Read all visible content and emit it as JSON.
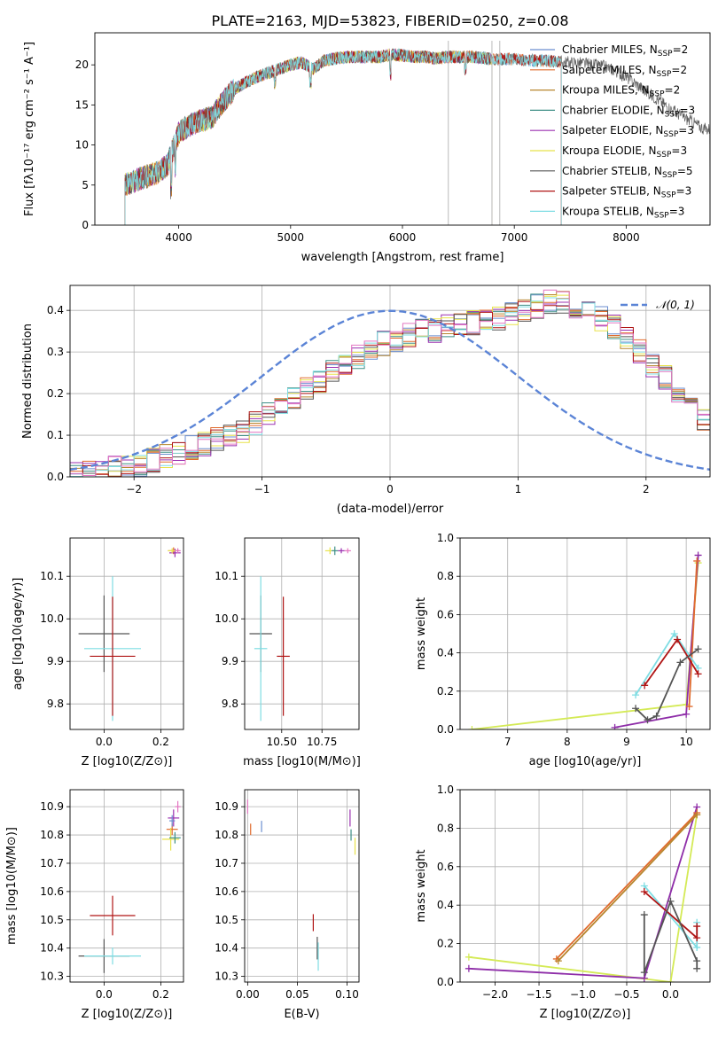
{
  "figure": {
    "title": "PLATE=2163, MJD=53823, FIBERID=0250, z=0.08"
  },
  "chart_data": [
    {
      "id": "spectrum",
      "type": "line",
      "title": "PLATE=2163, MJD=53823, FIBERID=0250, z=0.08",
      "xlabel": "wavelength [Angstrom, rest frame]",
      "ylabel": "Flux [f_λ 10^-17 erg cm^-2 s^-1 A^-1]",
      "xlim": [
        3250,
        8750
      ],
      "ylim": [
        0,
        24
      ],
      "xticks": [
        "4000",
        "5000",
        "6000",
        "7000",
        "8000"
      ],
      "yticks": [
        "0",
        "5",
        "10",
        "15",
        "20"
      ],
      "grid": false,
      "legend_position": "top-right",
      "continuum": {
        "x": [
          3520,
          3600,
          3700,
          3800,
          3900,
          3960,
          4000,
          4100,
          4200,
          4300,
          4400,
          4500,
          4600,
          4700,
          4800,
          4900,
          5000,
          5100,
          5200,
          5300,
          5400,
          5500,
          5600,
          5700,
          5800,
          5900,
          6000,
          6100,
          6200,
          6300,
          6400,
          6500,
          6600,
          6700,
          6800,
          6900,
          7000,
          7100,
          7200,
          7300,
          7400,
          7500,
          7600,
          7700,
          7800,
          7900,
          8000,
          8100,
          8200,
          8300,
          8400,
          8500,
          8600,
          8700
        ],
        "y": [
          5.0,
          5.5,
          6.0,
          6.5,
          7.5,
          10.0,
          11.5,
          12.5,
          13.0,
          13.5,
          15.5,
          17.0,
          17.8,
          18.5,
          19.0,
          19.5,
          20.0,
          20.3,
          19.5,
          20.5,
          20.8,
          21.0,
          21.0,
          21.0,
          21.0,
          21.3,
          21.2,
          21.0,
          21.0,
          20.8,
          21.0,
          21.0,
          21.0,
          20.9,
          20.7,
          20.7,
          20.7,
          20.6,
          20.5,
          20.5,
          20.4,
          20.3,
          20.2,
          20.0,
          19.8,
          19.3,
          18.5,
          17.5,
          16.5,
          15.5,
          14.5,
          13.6,
          12.8,
          12.0
        ]
      },
      "series": [
        {
          "name": "Chabrier MILES, N_SSP=2",
          "color": "#6b8ecf",
          "xmax": 7420
        },
        {
          "name": "Salpeter MILES, N_SSP=2",
          "color": "#e06b2d",
          "xmax": 7420
        },
        {
          "name": "Kroupa MILES, N_SSP=2",
          "color": "#b8862e",
          "xmax": 6800
        },
        {
          "name": "Chabrier ELODIE, N_SSP=3",
          "color": "#3f8f86",
          "xmax": 6800
        },
        {
          "name": "Salpeter ELODIE, N_SSP=3",
          "color": "#9b30b0",
          "xmax": 6800
        },
        {
          "name": "Kroupa ELODIE, N_SSP=3",
          "color": "#e8e24a",
          "xmax": 6800
        },
        {
          "name": "Chabrier STELIB, N_SSP=5",
          "color": "#555555",
          "xmax": 8750
        },
        {
          "name": "Salpeter STELIB, N_SSP=3",
          "color": "#b01515",
          "xmax": 7420
        },
        {
          "name": "Kroupa STELIB, N_SSP=3",
          "color": "#7fdde3",
          "xmax": 7420
        }
      ]
    },
    {
      "id": "residuals",
      "type": "bar",
      "xlabel": "(data-model)/error",
      "ylabel": "Normed distribution",
      "xlim": [
        -2.5,
        2.5
      ],
      "ylim": [
        0,
        0.46
      ],
      "xticks": [
        "−2",
        "−1",
        "0",
        "1",
        "2"
      ],
      "yticks": [
        "0.0",
        "0.1",
        "0.2",
        "0.3",
        "0.4"
      ],
      "grid": true,
      "legend_label": "𝒩(0, 1)",
      "legend_position": "top-right",
      "bin_width": 0.1,
      "histogram_envelope": [
        0.01,
        0.012,
        0.015,
        0.02,
        0.025,
        0.03,
        0.04,
        0.05,
        0.06,
        0.07,
        0.08,
        0.09,
        0.1,
        0.11,
        0.13,
        0.15,
        0.17,
        0.19,
        0.21,
        0.23,
        0.25,
        0.27,
        0.29,
        0.31,
        0.32,
        0.33,
        0.34,
        0.35,
        0.35,
        0.36,
        0.37,
        0.37,
        0.38,
        0.38,
        0.39,
        0.4,
        0.41,
        0.42,
        0.42,
        0.41,
        0.4,
        0.38,
        0.36,
        0.33,
        0.3,
        0.27,
        0.24,
        0.2,
        0.17,
        0.14,
        0.12
      ]
    },
    {
      "id": "age-vs-Z",
      "type": "scatter",
      "xlabel": "Z [log10(Z/Z⊙)]",
      "ylabel": "age [log10(age/yr)]",
      "xlim": [
        -0.12,
        0.28
      ],
      "ylim": [
        9.74,
        10.19
      ],
      "xticks": [
        "0.0",
        "0.2"
      ],
      "yticks": [
        "9.8",
        "9.9",
        "10.0",
        "10.1"
      ],
      "grid": true,
      "points": [
        {
          "x": -0.0,
          "y": 9.965,
          "xerr": 0.09,
          "yerr": 0.09,
          "color": "#555555"
        },
        {
          "x": 0.03,
          "y": 9.93,
          "xerr": 0.1,
          "yerr": 0.17,
          "color": "#7fdde3"
        },
        {
          "x": 0.03,
          "y": 9.912,
          "xerr": 0.08,
          "yerr": 0.14,
          "color": "#b01515"
        },
        {
          "x": 0.245,
          "y": 10.16,
          "xerr": 0.02,
          "yerr": 0.008,
          "color": "#e06b2d"
        },
        {
          "x": 0.25,
          "y": 10.155,
          "xerr": 0.02,
          "yerr": 0.01,
          "color": "#9b30b0"
        },
        {
          "x": 0.24,
          "y": 10.16,
          "xerr": 0.015,
          "yerr": 0.006,
          "color": "#e8e24a"
        },
        {
          "x": 0.26,
          "y": 10.16,
          "xerr": 0.01,
          "yerr": 0.006,
          "color": "#e377c2"
        }
      ]
    },
    {
      "id": "age-vs-mass",
      "type": "scatter",
      "xlabel": "mass [log10(M/M⊙)]",
      "ylabel": "",
      "xlim": [
        10.27,
        10.98
      ],
      "ylim": [
        9.74,
        10.19
      ],
      "xticks": [
        "10.50",
        "10.75"
      ],
      "yticks": [
        "9.8",
        "9.9",
        "10.0",
        "10.1"
      ],
      "grid": true,
      "points": [
        {
          "x": 10.37,
          "y": 9.965,
          "xerr": 0.07,
          "yerr": 0.09,
          "color": "#555555"
        },
        {
          "x": 10.37,
          "y": 9.93,
          "xerr": 0.04,
          "yerr": 0.17,
          "color": "#7fdde3"
        },
        {
          "x": 10.51,
          "y": 9.912,
          "xerr": 0.04,
          "yerr": 0.14,
          "color": "#b01515"
        },
        {
          "x": 10.8,
          "y": 10.16,
          "xerr": 0.03,
          "yerr": 0.008,
          "color": "#e8e24a"
        },
        {
          "x": 10.83,
          "y": 10.16,
          "xerr": 0.02,
          "yerr": 0.01,
          "color": "#3f8f86"
        },
        {
          "x": 10.87,
          "y": 10.16,
          "xerr": 0.02,
          "yerr": 0.006,
          "color": "#9b30b0"
        },
        {
          "x": 10.91,
          "y": 10.16,
          "xerr": 0.02,
          "yerr": 0.006,
          "color": "#e377c2"
        }
      ]
    },
    {
      "id": "weight-vs-age",
      "type": "line",
      "xlabel": "age [log10(age/yr)]",
      "ylabel": "mass weight",
      "xlim": [
        6.2,
        10.4
      ],
      "ylim": [
        0,
        1
      ],
      "xticks": [
        "7",
        "8",
        "9",
        "10"
      ],
      "yticks": [
        "0.0",
        "0.2",
        "0.4",
        "0.6",
        "0.8",
        "1.0"
      ],
      "grid": true,
      "series": [
        {
          "name": "Kroupa ELODIE",
          "color": "#d4ea56",
          "x": [
            6.4,
            10.0,
            10.2
          ],
          "y": [
            0.0,
            0.13,
            0.87
          ]
        },
        {
          "name": "Salpeter ELODIE",
          "color": "#8e2da8",
          "x": [
            8.8,
            10.0,
            10.2
          ],
          "y": [
            0.01,
            0.08,
            0.91
          ]
        },
        {
          "name": "Salpeter MILES",
          "color": "#e06b2d",
          "x": [
            10.05,
            10.18
          ],
          "y": [
            0.12,
            0.88
          ]
        },
        {
          "name": "Kroupa STELIB",
          "color": "#7fdde3",
          "x": [
            9.15,
            9.8,
            10.2
          ],
          "y": [
            0.18,
            0.5,
            0.32
          ]
        },
        {
          "name": "Salpeter STELIB",
          "color": "#b01515",
          "x": [
            9.3,
            9.85,
            10.2
          ],
          "y": [
            0.23,
            0.47,
            0.29
          ]
        },
        {
          "name": "Chabrier STELIB",
          "color": "#555555",
          "x": [
            9.15,
            9.35,
            9.5,
            9.9,
            10.2
          ],
          "y": [
            0.11,
            0.05,
            0.07,
            0.35,
            0.42
          ]
        }
      ]
    },
    {
      "id": "mass-vs-Z",
      "type": "scatter",
      "xlabel": "Z [log10(Z/Z⊙)]",
      "ylabel": "mass [log10(M/M⊙)]",
      "xlim": [
        -0.12,
        0.28
      ],
      "ylim": [
        10.28,
        10.96
      ],
      "xticks": [
        "0.0",
        "0.2"
      ],
      "yticks": [
        "10.3",
        "10.4",
        "10.5",
        "10.6",
        "10.7",
        "10.8",
        "10.9"
      ],
      "grid": true,
      "points": [
        {
          "x": 0.0,
          "y": 10.372,
          "xerr": 0.09,
          "yerr": 0.06,
          "color": "#555555"
        },
        {
          "x": 0.03,
          "y": 10.372,
          "xerr": 0.1,
          "yerr": 0.03,
          "color": "#7fdde3"
        },
        {
          "x": 0.03,
          "y": 10.515,
          "xerr": 0.08,
          "yerr": 0.07,
          "color": "#b01515"
        },
        {
          "x": 0.245,
          "y": 10.86,
          "xerr": 0.02,
          "yerr": 0.03,
          "color": "#9b30b0"
        },
        {
          "x": 0.24,
          "y": 10.82,
          "xerr": 0.02,
          "yerr": 0.02,
          "color": "#e06b2d"
        },
        {
          "x": 0.235,
          "y": 10.785,
          "xerr": 0.03,
          "yerr": 0.04,
          "color": "#e8e24a"
        },
        {
          "x": 0.25,
          "y": 10.79,
          "xerr": 0.02,
          "yerr": 0.02,
          "color": "#3f8f86"
        },
        {
          "x": 0.26,
          "y": 10.9,
          "xerr": 0.01,
          "yerr": 0.02,
          "color": "#e377c2"
        },
        {
          "x": 0.24,
          "y": 10.85,
          "xerr": 0.01,
          "yerr": 0.02,
          "color": "#6b8ecf"
        }
      ]
    },
    {
      "id": "mass-vs-EBV",
      "type": "scatter",
      "xlabel": "E(B-V)",
      "ylabel": "",
      "xlim": [
        -0.003,
        0.112
      ],
      "ylim": [
        10.28,
        10.96
      ],
      "xticks": [
        "0.00",
        "0.05",
        "0.10"
      ],
      "yticks": [
        "10.3",
        "10.4",
        "10.5",
        "10.6",
        "10.7",
        "10.8",
        "10.9"
      ],
      "grid": true,
      "points": [
        {
          "x": 0.0,
          "y": 10.9,
          "xerr": 0,
          "yerr": 0.025,
          "color": "#e377c2"
        },
        {
          "x": 0.003,
          "y": 10.82,
          "xerr": 0,
          "yerr": 0.02,
          "color": "#e06b2d"
        },
        {
          "x": 0.014,
          "y": 10.83,
          "xerr": 0,
          "yerr": 0.02,
          "color": "#6b8ecf"
        },
        {
          "x": 0.066,
          "y": 10.49,
          "xerr": 0,
          "yerr": 0.03,
          "color": "#b01515"
        },
        {
          "x": 0.07,
          "y": 10.4,
          "xerr": 0,
          "yerr": 0.04,
          "color": "#555555"
        },
        {
          "x": 0.071,
          "y": 10.37,
          "xerr": 0,
          "yerr": 0.05,
          "color": "#7fdde3"
        },
        {
          "x": 0.103,
          "y": 10.86,
          "xerr": 0,
          "yerr": 0.03,
          "color": "#9b30b0"
        },
        {
          "x": 0.104,
          "y": 10.8,
          "xerr": 0,
          "yerr": 0.02,
          "color": "#3f8f86"
        },
        {
          "x": 0.108,
          "y": 10.76,
          "xerr": 0,
          "yerr": 0.03,
          "color": "#e8e24a"
        }
      ]
    },
    {
      "id": "weight-vs-Z",
      "type": "line",
      "xlabel": "Z [log10(Z/Z⊙)]",
      "ylabel": "mass weight",
      "xlim": [
        -2.4,
        0.45
      ],
      "ylim": [
        0,
        1
      ],
      "xticks": [
        "−2.0",
        "−1.5",
        "−1.0",
        "−0.5",
        "0.0"
      ],
      "yticks": [
        "0.0",
        "0.2",
        "0.4",
        "0.6",
        "0.8",
        "1.0"
      ],
      "grid": true,
      "series": [
        {
          "name": "Kroupa ELODIE",
          "color": "#d4ea56",
          "x": [
            -2.3,
            0.0,
            0.3
          ],
          "y": [
            0.13,
            0.0,
            0.87
          ]
        },
        {
          "name": "Salpeter ELODIE",
          "color": "#8e2da8",
          "x": [
            -2.3,
            -0.3,
            0.3
          ],
          "y": [
            0.07,
            0.02,
            0.91
          ]
        },
        {
          "name": "Salpeter MILES",
          "color": "#e06b2d",
          "x": [
            -1.3,
            0.3
          ],
          "y": [
            0.12,
            0.88
          ]
        },
        {
          "name": "Kroupa MILES",
          "color": "#b8862e",
          "x": [
            -1.28,
            0.3
          ],
          "y": [
            0.11,
            0.87
          ]
        },
        {
          "name": "Kroupa STELIB",
          "color": "#7fdde3",
          "x": [
            -0.3,
            0.3,
            0.3
          ],
          "y": [
            0.5,
            0.18,
            0.31
          ]
        },
        {
          "name": "Salpeter STELIB",
          "color": "#b01515",
          "x": [
            -0.3,
            0.3,
            0.3
          ],
          "y": [
            0.47,
            0.23,
            0.29
          ]
        },
        {
          "name": "Chabrier STELIB",
          "color": "#555555",
          "x": [
            -0.3,
            -0.3,
            0.0,
            0.3,
            0.3
          ],
          "y": [
            0.35,
            0.05,
            0.42,
            0.11,
            0.07
          ]
        }
      ]
    }
  ]
}
